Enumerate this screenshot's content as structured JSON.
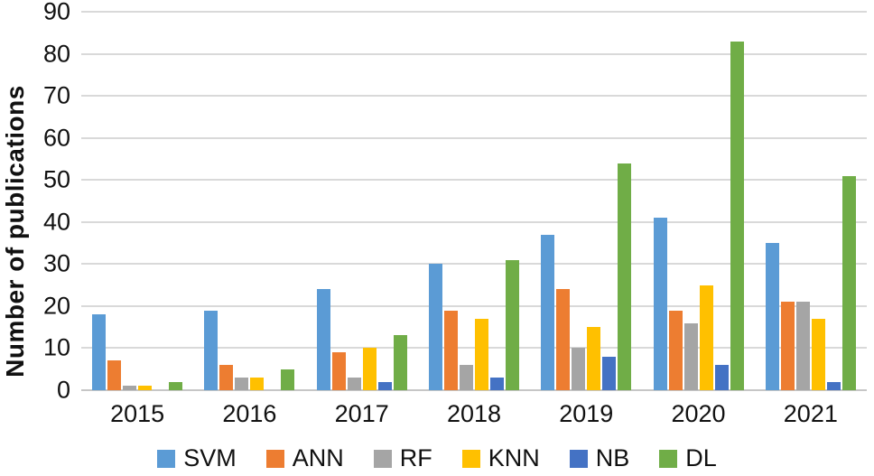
{
  "chart_data": {
    "type": "bar",
    "title": "",
    "xlabel": "",
    "ylabel": "Number of publications",
    "ylim": [
      0,
      90
    ],
    "yticks": [
      0,
      10,
      20,
      30,
      40,
      50,
      60,
      70,
      80,
      90
    ],
    "grid": true,
    "legend_position": "bottom",
    "gridline_color": "#D9D9D9",
    "axis_line_color": "#C6C6C6",
    "text_color": "#111111",
    "categories": [
      "2015",
      "2016",
      "2017",
      "2018",
      "2019",
      "2020",
      "2021"
    ],
    "series": [
      {
        "name": "SVM",
        "color": "#5B9BD5",
        "values": [
          18,
          19,
          24,
          30,
          37,
          41,
          35
        ]
      },
      {
        "name": "ANN",
        "color": "#ED7D31",
        "values": [
          7,
          6,
          9,
          19,
          24,
          19,
          21
        ]
      },
      {
        "name": "RF",
        "color": "#A5A5A5",
        "values": [
          1,
          3,
          3,
          6,
          10,
          16,
          21
        ]
      },
      {
        "name": "KNN",
        "color": "#FFC000",
        "values": [
          1,
          3,
          10,
          17,
          15,
          25,
          17
        ]
      },
      {
        "name": "NB",
        "color": "#4472C4",
        "values": [
          0,
          0,
          2,
          3,
          8,
          6,
          2
        ]
      },
      {
        "name": "DL",
        "color": "#70AD47",
        "values": [
          2,
          5,
          13,
          31,
          54,
          83,
          51
        ]
      }
    ]
  }
}
